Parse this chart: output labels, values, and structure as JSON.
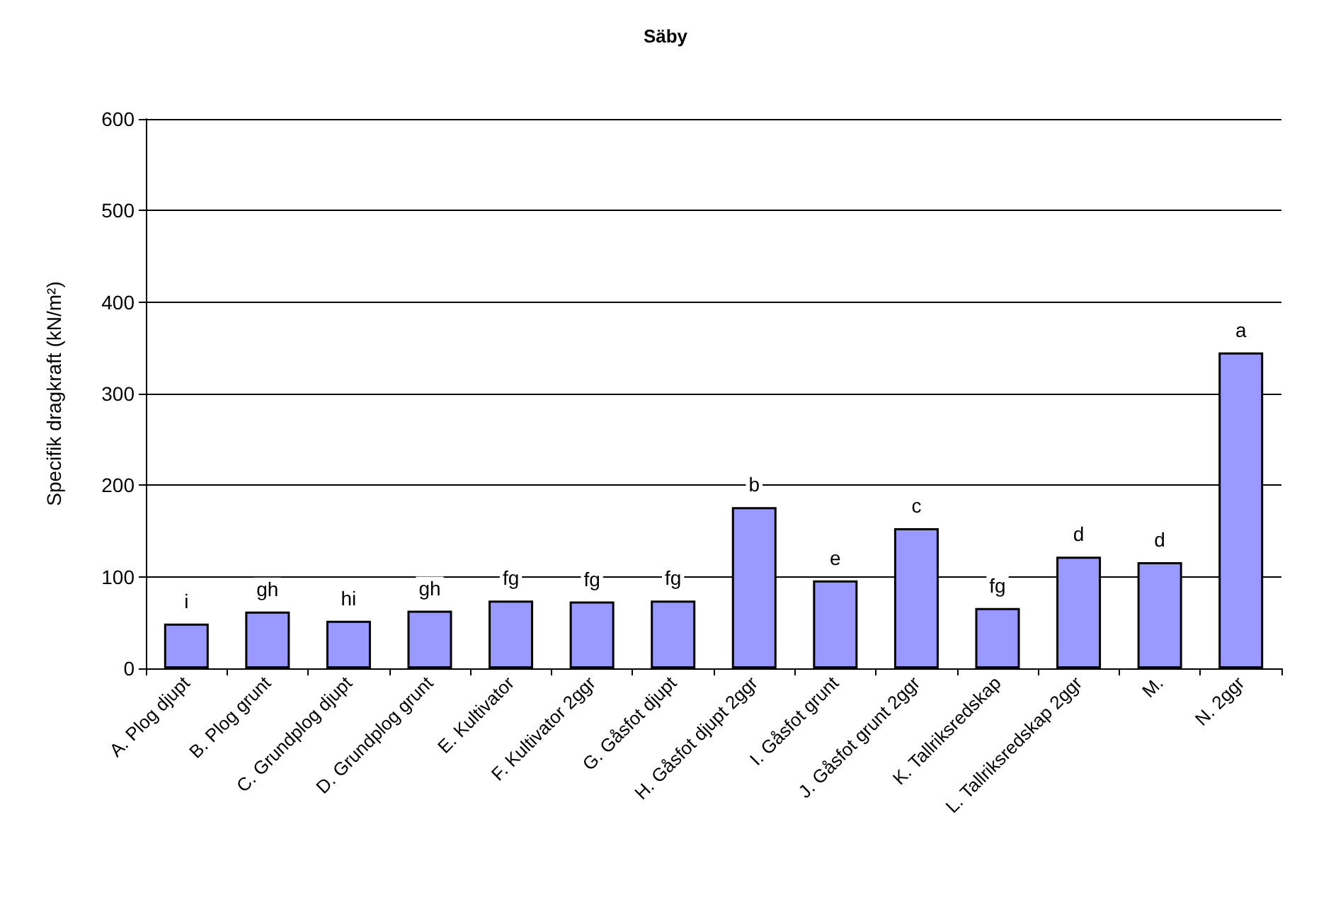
{
  "chart_data": {
    "type": "bar",
    "title": "Säby",
    "ylabel": "Specifik dragkraft (kN/m²)",
    "categories": [
      "A. Plog djupt",
      "B. Plog grunt",
      "C. Grundplog djupt",
      "D. Grundplog grunt",
      "E. Kultivator",
      "F. Kultivator 2ggr",
      "G. Gåsfot djupt",
      "H. Gåsfot djupt 2ggr",
      "I. Gåsfot grunt",
      "J. Gåsfot grunt 2ggr",
      "K. Tallriksredskap",
      "L. Tallriksredskap 2ggr",
      "M.",
      "N. 2ggr"
    ],
    "values": [
      49,
      62,
      52,
      63,
      74,
      73,
      74,
      176,
      96,
      153,
      66,
      122,
      116,
      345
    ],
    "value_labels": [
      "i",
      "gh",
      "hi",
      "gh",
      "fg",
      "fg",
      "fg",
      "b",
      "e",
      "c",
      "fg",
      "d",
      "d",
      "a"
    ],
    "color": "#9999ff",
    "ylim": [
      0,
      600
    ],
    "yticks": [
      0,
      100,
      200,
      300,
      400,
      500,
      600
    ],
    "grid": "y"
  }
}
